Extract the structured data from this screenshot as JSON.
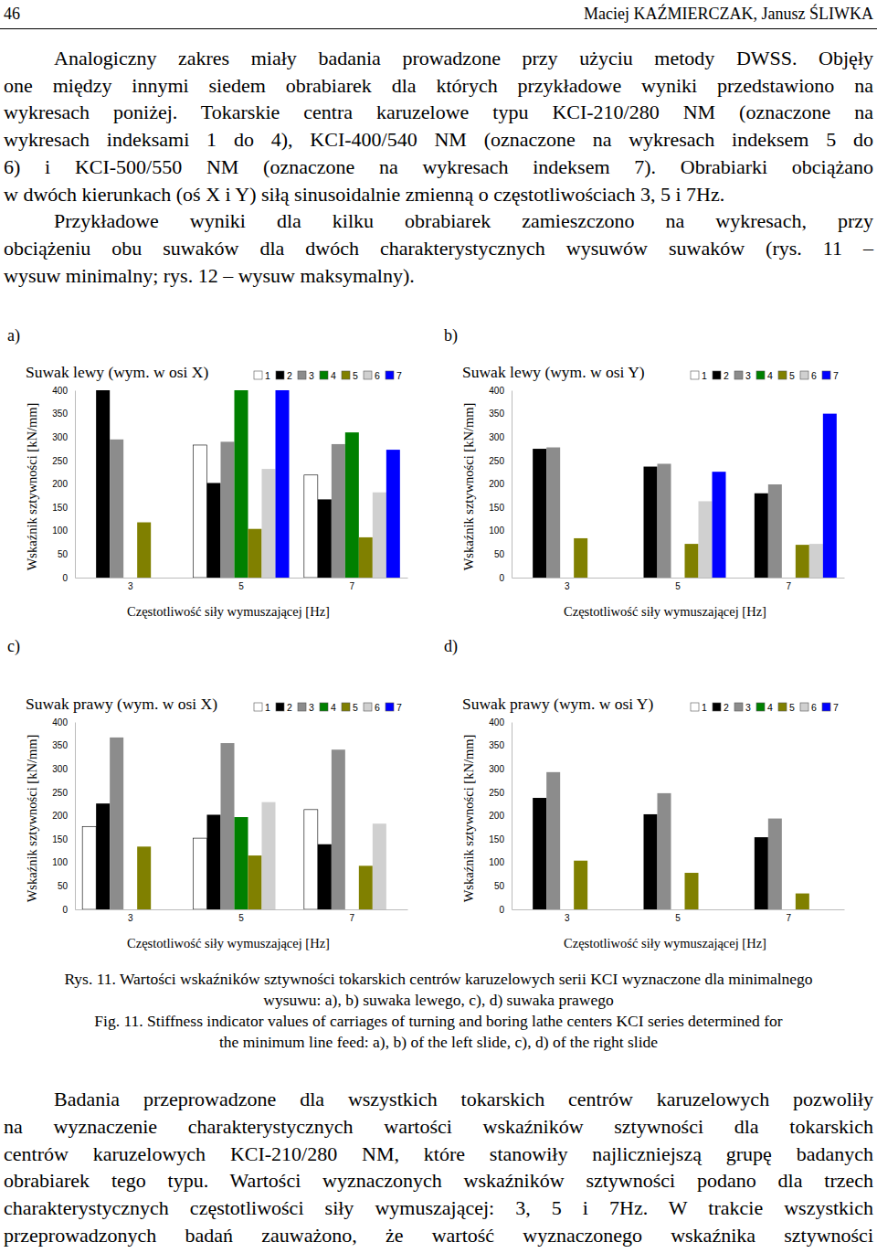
{
  "header": {
    "page_number": "46",
    "authors": "Maciej KAŹMIERCZAK, Janusz ŚLIWKA"
  },
  "paragraphs_top": [
    [
      "Analogiczny zakres miały badania prowadzone przy użyciu metody DWSS. Objęły",
      "one między innymi siedem obrabiarek dla których przykładowe wyniki przedstawiono na",
      "wykresach poniżej. Tokarskie centra karuzelowe typu KCI-210/280 NM (oznaczone na",
      "wykresach indeksami 1 do 4), KCI-400/540 NM (oznaczone na wykresach indeksem 5 do",
      "6) i KCI-500/550 NM (oznaczone na wykresach indeksem 7). Obrabiarki obciążano",
      "w dwóch kierunkach (oś X i Y) siłą sinusoidalnie zmienną o częstotliwościach 3, 5 i 7Hz."
    ],
    [
      "Przykładowe wyniki dla kilku obrabiarek zamieszczono na wykresach, przy",
      "obciążeniu obu suwaków dla dwóch charakterystycznych wysuwów suwaków (rys. 11 –",
      "wysuw minimalny; rys. 12 – wysuw maksymalny)."
    ]
  ],
  "panel_labels": [
    "a)",
    "b)",
    "c)",
    "d)"
  ],
  "chart_data": [
    {
      "type": "bar",
      "title": "Suwak lewy (wym. w osi X)",
      "y_label": "Wskaźnik sztywności [kN/mm]",
      "x_label": "Częstotliwość siły wymuszającej [Hz]",
      "categories": [
        "3",
        "5",
        "7"
      ],
      "legend": "top right",
      "ylim": [
        0,
        400
      ],
      "yticks": [
        0,
        50,
        100,
        150,
        200,
        250,
        300,
        350,
        400
      ],
      "series": [
        {
          "name": "1",
          "color": "#ffffff",
          "values": [
            null,
            283,
            219
          ]
        },
        {
          "name": "2",
          "color": "#000000",
          "values": [
            400,
            202,
            167
          ]
        },
        {
          "name": "3",
          "color": "#8c8c8c",
          "values": [
            295,
            290,
            285
          ]
        },
        {
          "name": "4",
          "color": "#008000",
          "values": [
            null,
            400,
            310
          ]
        },
        {
          "name": "5",
          "color": "#808000",
          "values": [
            118,
            104,
            86
          ]
        },
        {
          "name": "6",
          "color": "#d0d0d0",
          "values": [
            null,
            232,
            182
          ]
        },
        {
          "name": "7",
          "color": "#0000ff",
          "values": [
            null,
            400,
            273
          ]
        }
      ]
    },
    {
      "type": "bar",
      "title": "Suwak lewy (wym. w osi Y)",
      "y_label": "Wskaźnik sztywności [kN/mm]",
      "x_label": "Częstotliwość siły wymuszającej [Hz]",
      "categories": [
        "3",
        "5",
        "7"
      ],
      "legend": "top right",
      "ylim": [
        0,
        400
      ],
      "yticks": [
        0,
        50,
        100,
        150,
        200,
        250,
        300,
        350,
        400
      ],
      "series": [
        {
          "name": "1",
          "color": "#ffffff",
          "values": [
            null,
            null,
            null
          ]
        },
        {
          "name": "2",
          "color": "#000000",
          "values": [
            275,
            237,
            180
          ]
        },
        {
          "name": "3",
          "color": "#8c8c8c",
          "values": [
            278,
            243,
            199
          ]
        },
        {
          "name": "4",
          "color": "#008000",
          "values": [
            null,
            null,
            null
          ]
        },
        {
          "name": "5",
          "color": "#808000",
          "values": [
            84,
            72,
            70
          ]
        },
        {
          "name": "6",
          "color": "#d0d0d0",
          "values": [
            null,
            163,
            72
          ]
        },
        {
          "name": "7",
          "color": "#0000ff",
          "values": [
            null,
            226,
            350
          ]
        }
      ]
    },
    {
      "type": "bar",
      "title": "Suwak prawy (wym. w osi X)",
      "y_label": "Wskaźnik sztywności [kN/mm]",
      "x_label": "Częstotliwość siły wymuszającej [Hz]",
      "categories": [
        "3",
        "5",
        "7"
      ],
      "legend": "top right",
      "ylim": [
        0,
        400
      ],
      "yticks": [
        0,
        50,
        100,
        150,
        200,
        250,
        300,
        350,
        400
      ],
      "series": [
        {
          "name": "1",
          "color": "#ffffff",
          "values": [
            177,
            152,
            213
          ]
        },
        {
          "name": "2",
          "color": "#000000",
          "values": [
            226,
            202,
            139
          ]
        },
        {
          "name": "3",
          "color": "#8c8c8c",
          "values": [
            367,
            355,
            341
          ]
        },
        {
          "name": "4",
          "color": "#008000",
          "values": [
            null,
            197,
            null
          ]
        },
        {
          "name": "5",
          "color": "#808000",
          "values": [
            134,
            115,
            93
          ]
        },
        {
          "name": "6",
          "color": "#d0d0d0",
          "values": [
            null,
            229,
            183
          ]
        },
        {
          "name": "7",
          "color": "#0000ff",
          "values": [
            null,
            null,
            null
          ]
        }
      ]
    },
    {
      "type": "bar",
      "title": "Suwak prawy (wym. w osi Y)",
      "y_label": "Wskaźnik sztywności [kN/mm]",
      "x_label": "Częstotliwość siły wymuszającej [Hz]",
      "categories": [
        "3",
        "5",
        "7"
      ],
      "legend": "top right",
      "ylim": [
        0,
        400
      ],
      "yticks": [
        0,
        50,
        100,
        150,
        200,
        250,
        300,
        350,
        400
      ],
      "series": [
        {
          "name": "1",
          "color": "#ffffff",
          "values": [
            null,
            null,
            null
          ]
        },
        {
          "name": "2",
          "color": "#000000",
          "values": [
            238,
            203,
            154
          ]
        },
        {
          "name": "3",
          "color": "#8c8c8c",
          "values": [
            293,
            248,
            194
          ]
        },
        {
          "name": "4",
          "color": "#008000",
          "values": [
            null,
            null,
            null
          ]
        },
        {
          "name": "5",
          "color": "#808000",
          "values": [
            104,
            78,
            34
          ]
        },
        {
          "name": "6",
          "color": "#d0d0d0",
          "values": [
            null,
            null,
            null
          ]
        },
        {
          "name": "7",
          "color": "#0000ff",
          "values": [
            null,
            null,
            null
          ]
        }
      ]
    }
  ],
  "caption": [
    "Rys. 11. Wartości wskaźników sztywności tokarskich centrów karuzelowych serii KCI wyznaczone dla minimalnego",
    "wysuwu: a), b) suwaka lewego, c), d) suwaka prawego",
    "Fig. 11. Stiffness indicator values of carriages of turning and boring lathe centers KCI series determined for",
    "the minimum line feed: a), b) of the left slide, c), d) of the right slide"
  ],
  "paragraph_bottom": [
    "Badania przeprowadzone dla wszystkich tokarskich centrów karuzelowych pozwoliły",
    "na wyznaczenie charakterystycznych wartości wskaźników sztywności dla tokarskich",
    "centrów karuzelowych KCI-210/280 NM, które stanowiły najliczniejszą grupę badanych",
    "obrabiarek tego typu. Wartości wyznaczonych wskaźników sztywności podano dla trzech",
    "charakterystycznych częstotliwości siły wymuszającej: 3, 5 i 7Hz. W trakcie wszystkich",
    "przeprowadzonych badań zauważono, że wartość wyznaczonego wskaźnika sztywności"
  ]
}
